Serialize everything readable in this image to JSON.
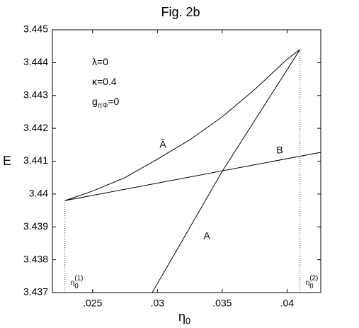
{
  "chart_data": {
    "type": "line",
    "title": "Fig. 2b",
    "ylabel": "E",
    "xlabel": {
      "base": "η",
      "sub": "0"
    },
    "annotations": [
      {
        "base": "λ=0"
      },
      {
        "base": "κ=0.4"
      },
      {
        "base": "g",
        "sub": "πΦ",
        "tail": "=0"
      }
    ],
    "markers": [
      {
        "base": "η",
        "sub": "0",
        "sup": "(1)"
      },
      {
        "base": "η",
        "sub": "0",
        "sup": "(2)"
      }
    ],
    "xlim": [
      0.0219,
      0.0426
    ],
    "ylim": [
      3.437,
      3.445
    ],
    "xticks": [
      {
        "value": 0.025,
        "label": ".025"
      },
      {
        "value": 0.03,
        "label": ".03"
      },
      {
        "value": 0.035,
        "label": ".035"
      },
      {
        "value": 0.04,
        "label": ".04"
      }
    ],
    "yticks": [
      3.437,
      3.438,
      3.439,
      3.44,
      3.441,
      3.442,
      3.443,
      3.444,
      3.445
    ],
    "grid": false,
    "series": [
      {
        "name": "Ã",
        "color": "#000000",
        "x": [
          0.02287,
          0.025,
          0.0275,
          0.03,
          0.0325,
          0.035,
          0.0375,
          0.04,
          0.041
        ],
        "values": [
          3.4398,
          3.44009,
          3.4405,
          3.44106,
          3.44165,
          3.44235,
          3.44318,
          3.4441,
          3.4444
        ]
      },
      {
        "name": "B",
        "color": "#000000",
        "x": [
          0.02287,
          0.0426
        ],
        "values": [
          3.4398,
          3.44127
        ]
      },
      {
        "name": "A",
        "color": "#000000",
        "x": [
          0.0296,
          0.035,
          0.041
        ],
        "values": [
          3.437,
          3.44069,
          3.4444
        ]
      }
    ]
  }
}
